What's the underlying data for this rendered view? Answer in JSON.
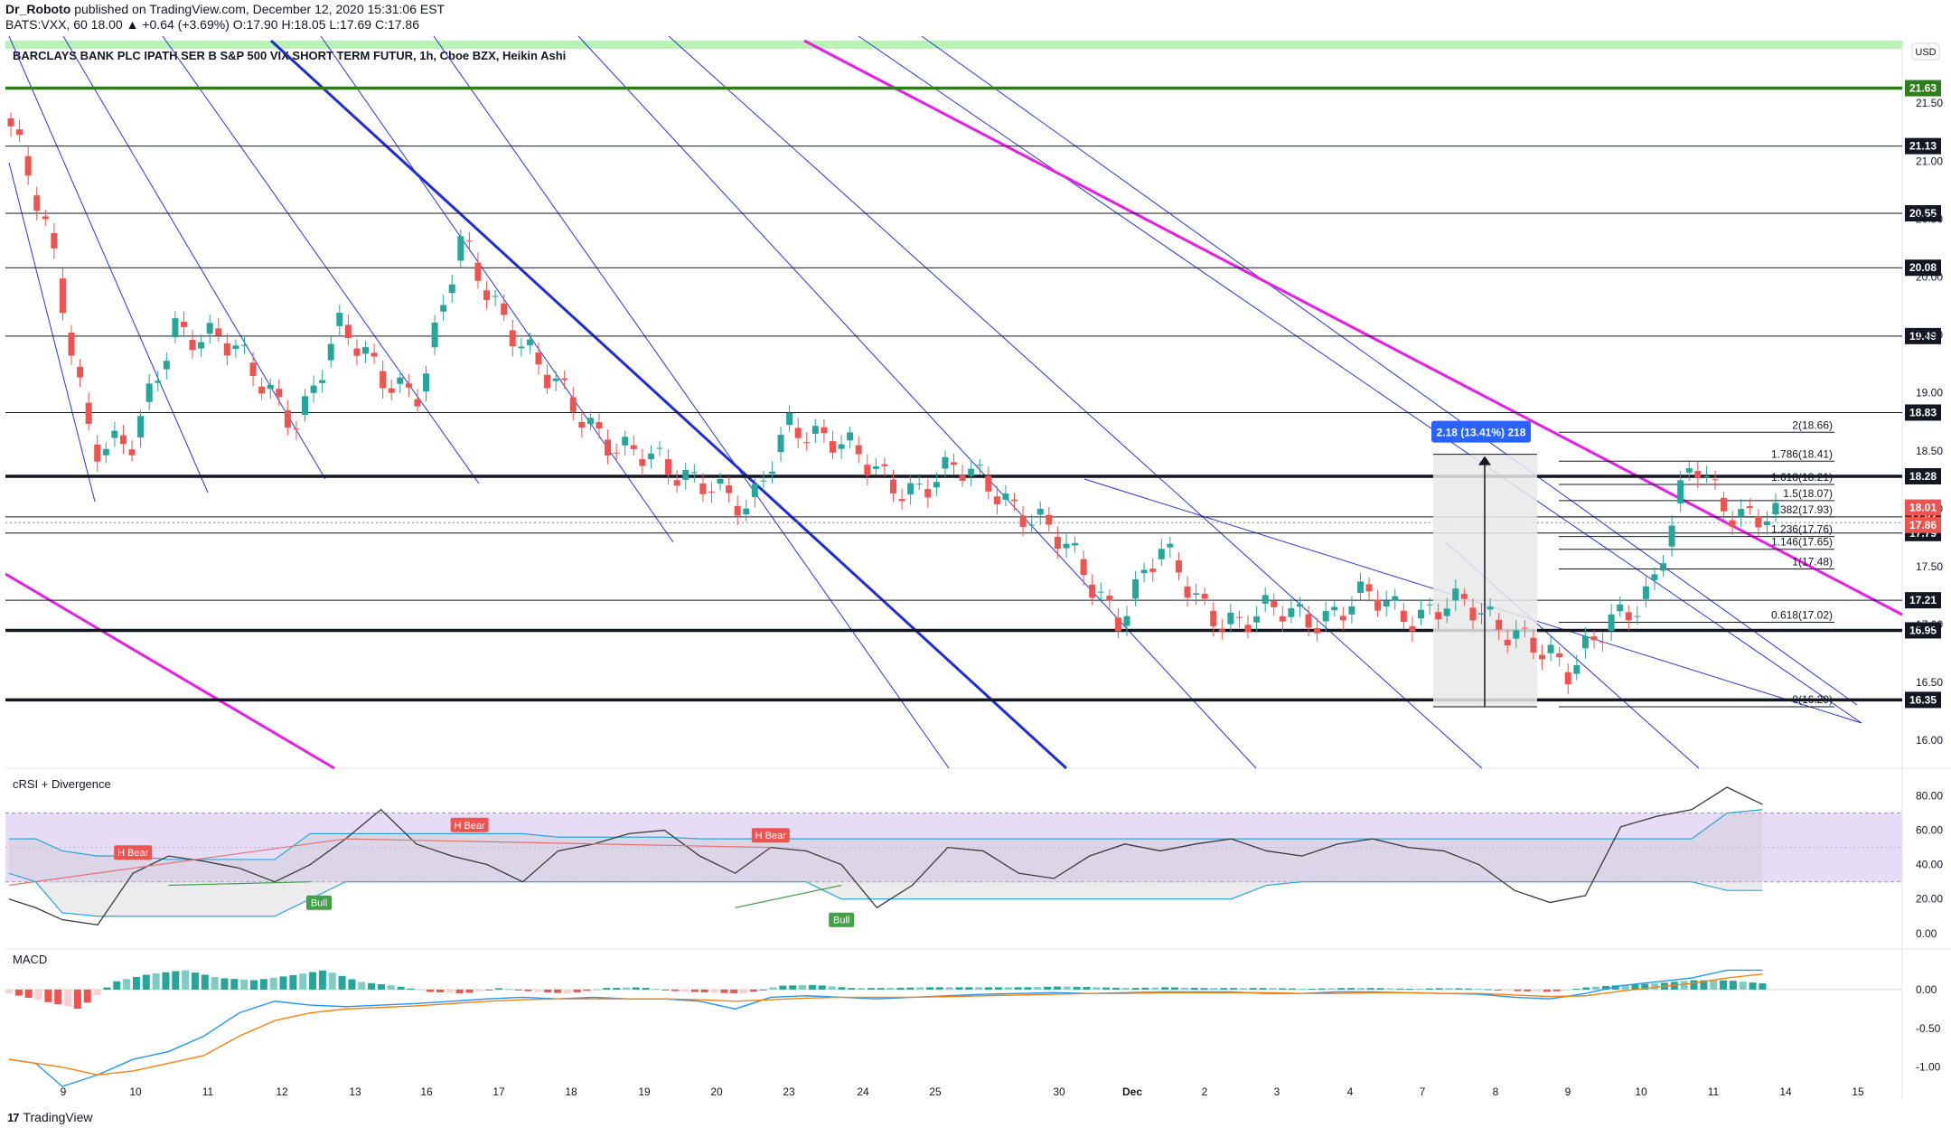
{
  "header": {
    "author": "Dr_Roboto",
    "published": "published on TradingView.com, December 12, 2020 15:31:06 EST",
    "ticker_line": "BATS:VXX, 60  18.00  ▲ +0.64 (+3.69%)  O:17.90  H:18.05  L:17.69  C:17.86"
  },
  "chart_data": [
    {
      "type": "candlestick",
      "title": "BARCLAYS BANK PLC IPATH SER B S&P 500 VIX SHORT TERM FUTUR, 1h, Cboe BZX, Heikin Ashi",
      "currency": "USD",
      "y_ticks": [
        "21.50",
        "21.00",
        "20.50",
        "20.00",
        "19.50",
        "19.00",
        "18.50",
        "18.00",
        "17.50",
        "17.00",
        "16.50",
        "16.00"
      ],
      "y_tick_values": [
        21.5,
        21.0,
        20.5,
        20.0,
        19.5,
        19.0,
        18.5,
        18.0,
        17.5,
        17.0,
        16.5,
        16.0
      ],
      "ylim": [
        15.76,
        22.04
      ],
      "x_ticks": [
        "9",
        "10",
        "11",
        "12",
        "13",
        "16",
        "17",
        "18",
        "19",
        "20",
        "23",
        "24",
        "25",
        "30",
        "Dec",
        "2",
        "3",
        "4",
        "7",
        "8",
        "9",
        "10",
        "11",
        "14",
        "15"
      ],
      "close_series": [
        21.3,
        20.2,
        18.6,
        18.5,
        19.6,
        19.5,
        19.1,
        18.8,
        19.5,
        19.2,
        19.0,
        20.3,
        19.7,
        19.1,
        18.8,
        18.5,
        18.3,
        18.3,
        17.9,
        18.8,
        18.6,
        18.3,
        18.2,
        18.3,
        18.2,
        17.9,
        17.5,
        17.1,
        17.6,
        17.2,
        17.0,
        17.1,
        17.1,
        17.2,
        17.1,
        17.2,
        17.0,
        16.95,
        16.5,
        17.1,
        17.3,
        18.4,
        18.0,
        17.86
      ],
      "ohlc_examples": [
        {
          "o": 21.2,
          "h": 21.3,
          "l": 20.6,
          "c": 20.9
        },
        {
          "o": 20.35,
          "h": 20.45,
          "l": 18.4,
          "c": 18.6
        },
        {
          "o": 18.6,
          "h": 19.9,
          "l": 18.55,
          "c": 19.75
        },
        {
          "o": 19.75,
          "h": 20.7,
          "l": 19.7,
          "c": 20.4
        },
        {
          "o": 20.4,
          "h": 20.5,
          "l": 19.0,
          "c": 19.1
        },
        {
          "o": 18.35,
          "h": 19.05,
          "l": 18.2,
          "c": 18.8
        },
        {
          "o": 18.2,
          "h": 18.3,
          "l": 17.35,
          "c": 17.45
        },
        {
          "o": 17.45,
          "h": 18.2,
          "l": 17.4,
          "c": 17.9
        },
        {
          "o": 17.1,
          "h": 17.35,
          "l": 16.95,
          "c": 17.25
        },
        {
          "o": 17.25,
          "h": 17.35,
          "l": 16.4,
          "c": 16.5
        },
        {
          "o": 16.55,
          "h": 17.3,
          "l": 16.5,
          "c": 17.2
        },
        {
          "o": 17.4,
          "h": 18.45,
          "l": 17.35,
          "c": 18.35
        },
        {
          "o": 18.35,
          "h": 18.4,
          "l": 17.7,
          "c": 17.86
        }
      ],
      "levels": [
        {
          "label": "21.63",
          "value": 21.63,
          "style": "green"
        },
        {
          "label": "21.13",
          "value": 21.13,
          "style": "black"
        },
        {
          "label": "20.55",
          "value": 20.55,
          "style": "black"
        },
        {
          "label": "20.08",
          "value": 20.08,
          "style": "black"
        },
        {
          "label": "19.49",
          "value": 19.49,
          "style": "black"
        },
        {
          "label": "18.83",
          "value": 18.83,
          "style": "black"
        },
        {
          "label": "18.28",
          "value": 18.28,
          "style": "bold"
        },
        {
          "label": "17.93",
          "value": 17.93,
          "style": "black"
        },
        {
          "label": "17.79",
          "value": 17.79,
          "style": "black"
        },
        {
          "label": "17.21",
          "value": 17.21,
          "style": "black"
        },
        {
          "label": "16.95",
          "value": 16.95,
          "style": "bold"
        },
        {
          "label": "16.35",
          "value": 16.35,
          "style": "bold"
        }
      ],
      "price_tags": [
        {
          "label": "18.01",
          "value": 18.01,
          "color": "#ef5350"
        },
        {
          "label": "17.86",
          "value": 17.86,
          "color": "#ef5350"
        }
      ],
      "fibonacci": [
        {
          "label": "2(18.66)",
          "value": 18.66
        },
        {
          "label": "1.786(18.41)",
          "value": 18.41
        },
        {
          "label": "1.618(18.21)",
          "value": 18.21
        },
        {
          "label": "1.5(18.07)",
          "value": 18.07
        },
        {
          "label": "1.382(17.93)",
          "value": 17.93
        },
        {
          "label": "1.236(17.76)",
          "value": 17.76
        },
        {
          "label": "1.146(17.65)",
          "value": 17.65
        },
        {
          "label": "1(17.48)",
          "value": 17.48
        },
        {
          "label": "0.618(17.02)",
          "value": 17.02
        },
        {
          "label": "0(16.29)",
          "value": 16.29
        }
      ],
      "measure_label": "2.18 (13.41%) 218",
      "measure_range": [
        16.29,
        18.47
      ]
    },
    {
      "type": "line",
      "title": "cRSI + Divergence",
      "y_ticks": [
        "80.00",
        "60.00",
        "40.00",
        "20.00",
        "0.00"
      ],
      "y_tick_values": [
        80,
        60,
        40,
        20,
        0
      ],
      "ylim": [
        -8,
        95
      ],
      "band": [
        70,
        30
      ],
      "x": [
        0,
        3,
        6,
        10,
        14,
        18,
        22,
        26,
        30,
        34,
        38,
        42,
        46,
        50,
        54,
        58,
        62,
        66,
        70,
        74,
        78,
        82,
        86,
        90,
        94,
        98,
        102,
        106,
        110,
        114,
        118,
        122,
        126,
        130,
        134,
        138,
        142,
        146,
        150,
        154,
        158,
        162,
        166,
        170,
        174,
        178,
        182,
        186,
        190,
        194,
        198
      ],
      "crsi": [
        20,
        15,
        8,
        5,
        35,
        45,
        42,
        38,
        30,
        40,
        55,
        72,
        52,
        45,
        40,
        30,
        48,
        52,
        58,
        60,
        45,
        35,
        50,
        48,
        40,
        15,
        28,
        50,
        48,
        35,
        32,
        45,
        52,
        48,
        52,
        55,
        48,
        45,
        52,
        55,
        50,
        48,
        40,
        25,
        18,
        22,
        62,
        68,
        72,
        85,
        75
      ],
      "upper_band": [
        55,
        55,
        48,
        45,
        45,
        43,
        43,
        43,
        43,
        58,
        58,
        58,
        58,
        58,
        58,
        58,
        56,
        56,
        56,
        56,
        55,
        55,
        55,
        55,
        55,
        55,
        55,
        55,
        55,
        55,
        55,
        55,
        55,
        55,
        55,
        55,
        55,
        55,
        55,
        55,
        55,
        55,
        55,
        55,
        55,
        55,
        55,
        55,
        55,
        70,
        72
      ],
      "lower_band": [
        35,
        30,
        12,
        10,
        10,
        10,
        10,
        10,
        10,
        20,
        30,
        30,
        30,
        30,
        30,
        30,
        30,
        30,
        30,
        30,
        30,
        30,
        30,
        30,
        20,
        20,
        20,
        20,
        20,
        20,
        20,
        20,
        20,
        20,
        20,
        20,
        28,
        30,
        30,
        30,
        30,
        30,
        30,
        30,
        30,
        30,
        30,
        30,
        30,
        25,
        25
      ],
      "annotations": [
        {
          "label": "H Bear",
          "kind": "bear"
        },
        {
          "label": "H Bear",
          "kind": "bear"
        },
        {
          "label": "H Bear",
          "kind": "bear"
        },
        {
          "label": "Bull",
          "kind": "bull"
        },
        {
          "label": "Bull",
          "kind": "bull"
        }
      ]
    },
    {
      "type": "bar",
      "title": "MACD",
      "y_ticks": [
        "0.00",
        "-0.50",
        "-1.00"
      ],
      "y_tick_values": [
        0.0,
        -0.5,
        -1.0
      ],
      "ylim": [
        -1.4,
        0.5
      ],
      "x": [
        0,
        3,
        6,
        10,
        14,
        18,
        22,
        26,
        30,
        34,
        38,
        42,
        46,
        50,
        54,
        58,
        62,
        66,
        70,
        74,
        78,
        82,
        86,
        90,
        94,
        98,
        102,
        106,
        110,
        114,
        118,
        122,
        126,
        130,
        134,
        138,
        142,
        146,
        150,
        154,
        158,
        162,
        166,
        170,
        174,
        178,
        182,
        186,
        190,
        194,
        198
      ],
      "macd_line": [
        -0.9,
        -0.95,
        -1.25,
        -1.1,
        -0.9,
        -0.8,
        -0.6,
        -0.3,
        -0.15,
        -0.2,
        -0.22,
        -0.2,
        -0.18,
        -0.15,
        -0.12,
        -0.1,
        -0.12,
        -0.1,
        -0.12,
        -0.12,
        -0.15,
        -0.25,
        -0.1,
        -0.08,
        -0.1,
        -0.12,
        -0.1,
        -0.08,
        -0.06,
        -0.05,
        -0.04,
        -0.05,
        -0.04,
        -0.03,
        -0.03,
        -0.03,
        -0.05,
        -0.05,
        -0.03,
        -0.03,
        -0.04,
        -0.05,
        -0.06,
        -0.1,
        -0.12,
        -0.05,
        0.05,
        0.1,
        0.15,
        0.25,
        0.25
      ],
      "signal_line": [
        -0.9,
        -0.95,
        -1.0,
        -1.1,
        -1.05,
        -0.95,
        -0.85,
        -0.6,
        -0.4,
        -0.3,
        -0.25,
        -0.23,
        -0.21,
        -0.18,
        -0.15,
        -0.13,
        -0.12,
        -0.12,
        -0.12,
        -0.12,
        -0.13,
        -0.15,
        -0.13,
        -0.11,
        -0.1,
        -0.1,
        -0.1,
        -0.09,
        -0.08,
        -0.07,
        -0.06,
        -0.05,
        -0.05,
        -0.04,
        -0.04,
        -0.04,
        -0.04,
        -0.05,
        -0.05,
        -0.04,
        -0.04,
        -0.05,
        -0.05,
        -0.07,
        -0.09,
        -0.08,
        -0.02,
        0.03,
        0.08,
        0.15,
        0.2
      ],
      "histogram": [
        -0.05,
        -0.15,
        -0.25,
        0.1,
        0.2,
        0.25,
        0.15,
        0.12,
        0.18,
        0.25,
        0.1,
        0.05,
        -0.03,
        -0.05,
        0.02,
        -0.03,
        -0.05,
        0.02,
        0.03,
        -0.02,
        -0.04,
        -0.05,
        0.05,
        0.06,
        0.02,
        0.02,
        0.03,
        0.03,
        0.03,
        0.03,
        0.04,
        0.03,
        0.02,
        0.03,
        0.02,
        0.02,
        0.02,
        0.01,
        0.02,
        0.02,
        0.01,
        0.02,
        0.01,
        -0.02,
        -0.03,
        0.03,
        0.06,
        0.08,
        0.12,
        0.12,
        0.08
      ]
    }
  ],
  "footer": {
    "logo_text": "17",
    "brand": "TradingView"
  }
}
